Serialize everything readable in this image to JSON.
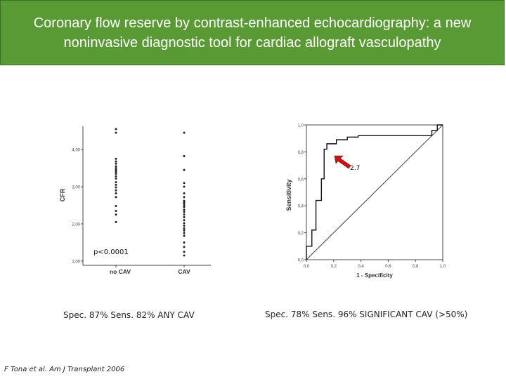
{
  "slide": {
    "title": "Coronary flow reserve by contrast-enhanced echocardiography: a new noninvasive diagnostic tool for cardiac allograft vasculopathy",
    "left_caption": "Spec. 87%  Sens. 82%  ANY CAV",
    "right_caption": "Spec. 78%  Sens. 96%  SIGNIFICANT CAV (>50%)",
    "citation": "F Tona et al. Am J Transplant 2006",
    "title_bg": "#5a9a34"
  },
  "chart_data": [
    {
      "type": "scatter",
      "ylabel": "CFR",
      "xlabel": "",
      "categories": [
        "no CAV",
        "CAV"
      ],
      "yticks": [
        "1,00",
        "2,00",
        "3,00",
        "4,00"
      ],
      "ylim": [
        1.0,
        4.6
      ],
      "annotation": "p<0.0001",
      "series": [
        {
          "values": [
            4.55,
            4.45,
            3.75,
            3.68,
            3.62,
            3.55,
            3.5,
            3.45,
            3.4,
            3.35,
            3.28,
            3.22,
            3.12,
            3.05,
            2.98,
            2.9,
            2.82,
            2.72,
            2.48,
            2.35,
            2.25,
            2.05
          ]
        },
        {
          "values": [
            4.45,
            3.82,
            3.45,
            3.1,
            3.0,
            2.82,
            2.72,
            2.62,
            2.58,
            2.55,
            2.5,
            2.45,
            2.38,
            2.32,
            2.25,
            2.18,
            2.1,
            2.02,
            1.95,
            1.88,
            1.82,
            1.75,
            1.68,
            1.5,
            1.38,
            1.25,
            1.15
          ]
        }
      ]
    },
    {
      "type": "line",
      "xlabel": "1 - Specificity",
      "ylabel": "Sensitivity",
      "xticks": [
        "0,0",
        "0,2",
        "0,4",
        "0,6",
        "0,8",
        "1,0"
      ],
      "yticks": [
        "0,0",
        "0,2",
        "0,4",
        "0,6",
        "0,8",
        "1,0"
      ],
      "xlim": [
        0,
        1
      ],
      "ylim": [
        0,
        1
      ],
      "annotation": "2.7",
      "annotation_color": "#cc1111",
      "series": [
        {
          "x": [
            0,
            0,
            0.04,
            0.04,
            0.07,
            0.07,
            0.11,
            0.11,
            0.13,
            0.13,
            0.15,
            0.15,
            0.22,
            0.22,
            0.3,
            0.3,
            0.38,
            0.38,
            0.92,
            0.92,
            0.96,
            0.96,
            1.0
          ],
          "y": [
            0,
            0.1,
            0.1,
            0.22,
            0.22,
            0.44,
            0.44,
            0.6,
            0.6,
            0.82,
            0.82,
            0.86,
            0.86,
            0.89,
            0.89,
            0.91,
            0.91,
            0.92,
            0.92,
            0.96,
            0.96,
            1.0,
            1.0
          ]
        },
        {
          "x": [
            0,
            1
          ],
          "y": [
            0,
            1
          ]
        }
      ]
    }
  ]
}
